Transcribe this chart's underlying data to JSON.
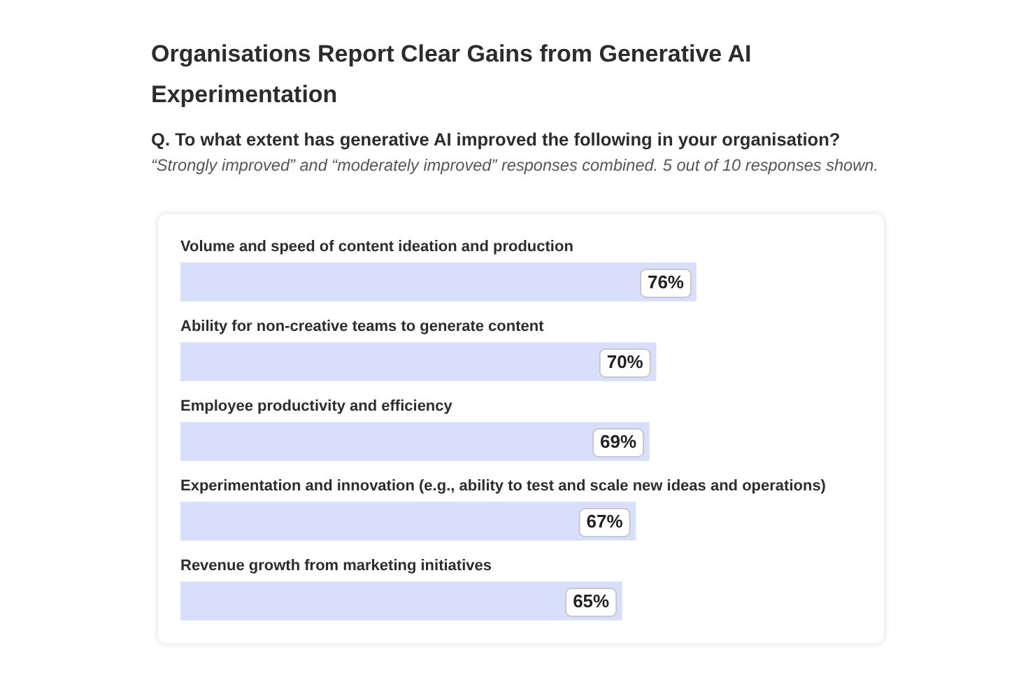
{
  "chart_data": {
    "type": "bar",
    "orientation": "horizontal",
    "title": "Organisations Report Clear Gains from Generative AI Experimentation",
    "subtitle": "Q. To what extent has generative AI improved the following in your organisation?",
    "annotations": [
      "“Strongly improved” and “moderately improved” responses combined. 5 out of 10 responses shown."
    ],
    "categories": [
      "Volume and speed of content ideation and production",
      "Ability for non-creative teams to generate content",
      "Employee productivity and efficiency",
      "Experimentation and innovation (e.g., ability to test and scale new ideas and operations)",
      "Revenue growth from marketing initiatives"
    ],
    "values": [
      76,
      70,
      69,
      67,
      65
    ],
    "value_labels": [
      "76%",
      "70%",
      "69%",
      "67%",
      "65%"
    ],
    "color": "#d7dffb",
    "legend": false
  }
}
